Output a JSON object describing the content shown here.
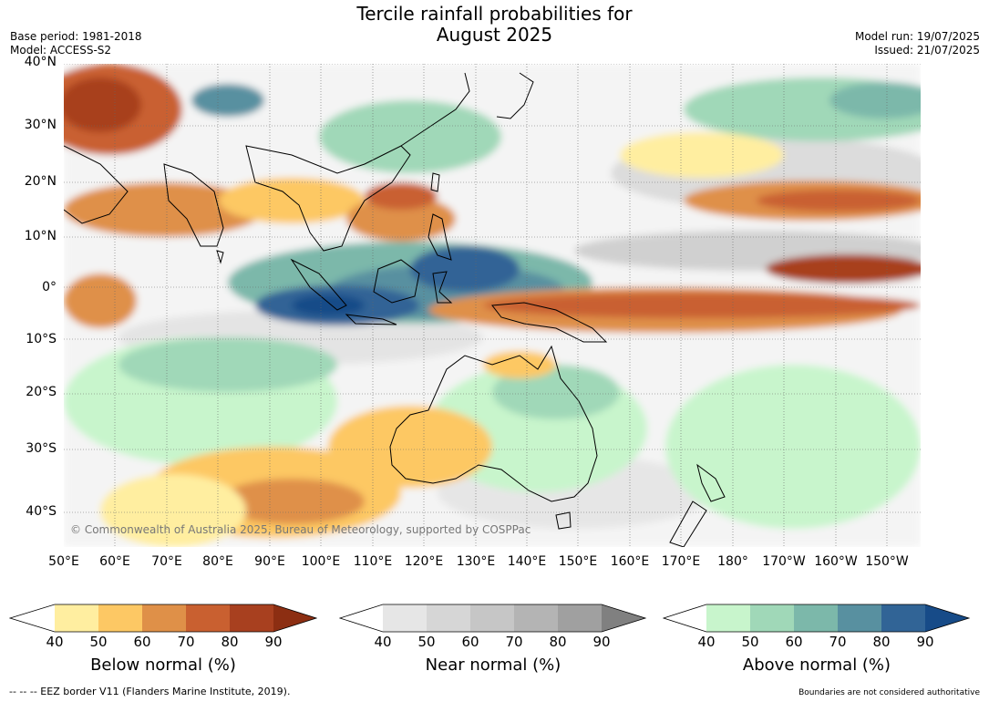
{
  "title": {
    "line1": "Tercile rainfall probabilities for",
    "line2": "August 2025"
  },
  "meta_left": {
    "base_period": "Base period: 1981-2018",
    "model": "Model: ACCESS-S2"
  },
  "meta_right": {
    "model_run": "Model run: 19/07/2025",
    "issued": "Issued: 21/07/2025"
  },
  "lat_labels": [
    "40°N",
    "30°N",
    "20°N",
    "10°N",
    "0°",
    "10°S",
    "20°S",
    "30°S",
    "40°S"
  ],
  "lon_labels": [
    "50°E",
    "60°E",
    "70°E",
    "80°E",
    "90°E",
    "100°E",
    "110°E",
    "120°E",
    "130°E",
    "140°E",
    "150°E",
    "160°E",
    "170°E",
    "180°",
    "170°W",
    "160°W",
    "150°W"
  ],
  "copyright": "© Commonwealth of Australia 2025, Bureau of Meteorology, supported by COSPPac",
  "colorbars": [
    {
      "label": "Below normal (%)",
      "ticks": [
        "40",
        "50",
        "60",
        "70",
        "80",
        "90"
      ],
      "colors": [
        "#ffffff",
        "#ffeea0",
        "#fdc864",
        "#df9048",
        "#c96030",
        "#a8401f",
        "#8c2e12"
      ]
    },
    {
      "label": "Near normal (%)",
      "ticks": [
        "40",
        "50",
        "60",
        "70",
        "80",
        "90"
      ],
      "colors": [
        "#ffffff",
        "#e6e6e6",
        "#d6d6d6",
        "#c6c6c6",
        "#b4b4b4",
        "#a0a0a0",
        "#808080"
      ]
    },
    {
      "label": "Above normal (%)",
      "ticks": [
        "40",
        "50",
        "60",
        "70",
        "80",
        "90"
      ],
      "colors": [
        "#ffffff",
        "#c8f5cc",
        "#a0d8b8",
        "#7cb8aa",
        "#5890a0",
        "#316496",
        "#174b88"
      ]
    }
  ],
  "footer_left": "--  --  -- EEZ border V11 (Flanders Marine Institute, 2019).",
  "footer_right": "Boundaries are not considered authoritative"
}
